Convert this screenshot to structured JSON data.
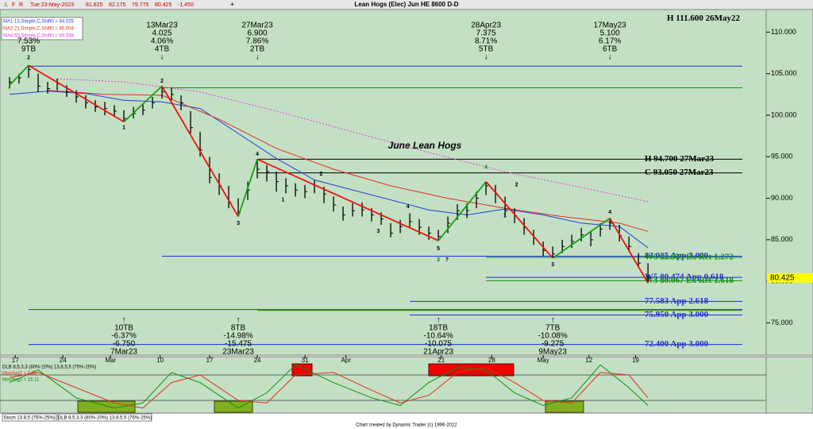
{
  "chart_data": {
    "type": "ohlc",
    "title": "Lean Hogs (Elec) Jun HE 8600 D-D",
    "header": {
      "tools": [
        "L",
        "F",
        "R"
      ],
      "date": "Tue 23-May-2023",
      "quote": [
        81.825,
        82.175,
        79.775,
        80.425,
        {
          "value": -1.45,
          "label": "-1.450"
        }
      ],
      "cursor_symbol": "+"
    },
    "annotation": "June Lean Hogs",
    "annotation_at": {
      "x": 43.5,
      "y": 96.4
    },
    "xlim": [
      -1,
      79.4
    ],
    "xticks": [
      {
        "value": 0.6,
        "label": "17"
      },
      {
        "value": 5.6,
        "label": "24"
      },
      {
        "value": 10.6,
        "label": "Mar"
      },
      {
        "value": 15.8,
        "label": "10"
      },
      {
        "value": 21,
        "label": "17"
      },
      {
        "value": 26,
        "label": "24"
      },
      {
        "value": 31,
        "label": "31"
      },
      {
        "value": 35.3,
        "label": "Apr"
      },
      {
        "value": 45.3,
        "label": "21"
      },
      {
        "value": 50.6,
        "label": "28"
      },
      {
        "value": 56,
        "label": "May"
      },
      {
        "value": 60.8,
        "label": "12"
      },
      {
        "value": 65.7,
        "label": "19"
      }
    ],
    "ylim": [
      71.5,
      113.1
    ],
    "yticks": [
      {
        "value": 75,
        "label": "75.000"
      },
      {
        "value": 80,
        "label": "80.000"
      },
      {
        "value": 85,
        "label": "85.000"
      },
      {
        "value": 90,
        "label": "90.000"
      },
      {
        "value": 95,
        "label": "95.000"
      },
      {
        "value": 100,
        "label": "100.000"
      },
      {
        "value": 105,
        "label": "105.000"
      },
      {
        "value": 110,
        "label": "110.000"
      }
    ],
    "bars": {
      "color": "#000000",
      "high": [
        104.6,
        105.0,
        106.0,
        105.0,
        104.0,
        104.4,
        103.6,
        103.0,
        102.4,
        101.8,
        101.6,
        101.2,
        100.6,
        101.0,
        101.4,
        102.2,
        103.5,
        103.3,
        102.4,
        100.5,
        98.0,
        95.0,
        93.0,
        91.5,
        90.0,
        92.0,
        94.7,
        94.0,
        93.2,
        92.4,
        91.8,
        91.6,
        92.2,
        91.4,
        90.2,
        89.0,
        89.4,
        89.5,
        88.8,
        88.3,
        87.0,
        87.4,
        88.2,
        87.5,
        86.6,
        86.2,
        87.8,
        89.3,
        89.4,
        90.8,
        92.0,
        91.6,
        90.2,
        88.8,
        87.6,
        86.2,
        84.8,
        84.2,
        85.0,
        85.6,
        86.4,
        86.0,
        87.0,
        87.6,
        86.8,
        85.4,
        83.4,
        82.175
      ],
      "low": [
        103.2,
        103.8,
        104.5,
        102.8,
        102.6,
        103.0,
        102.2,
        101.5,
        100.8,
        100.4,
        100.0,
        99.8,
        99.2,
        99.6,
        100.0,
        100.8,
        102.0,
        101.8,
        100.6,
        97.8,
        95.0,
        91.8,
        90.4,
        88.8,
        87.8,
        89.8,
        92.4,
        92.0,
        90.8,
        90.6,
        90.2,
        90.0,
        90.6,
        89.4,
        88.4,
        87.3,
        87.8,
        87.8,
        87.2,
        86.8,
        85.3,
        85.8,
        86.4,
        85.6,
        85.0,
        84.9,
        85.8,
        87.4,
        87.6,
        88.8,
        90.4,
        89.4,
        87.8,
        87.0,
        85.6,
        84.4,
        83.0,
        82.8,
        83.4,
        84.0,
        84.8,
        84.2,
        85.4,
        86.2,
        84.8,
        83.6,
        81.6,
        79.775
      ],
      "close": [
        104.0,
        104.5,
        105.5,
        103.5,
        103.2,
        103.8,
        102.8,
        102.2,
        101.5,
        101.0,
        100.8,
        100.5,
        99.6,
        100.2,
        100.6,
        101.5,
        102.8,
        102.5,
        101.5,
        98.5,
        95.8,
        92.5,
        91.5,
        89.5,
        88.3,
        91.0,
        93.5,
        93.2,
        92.0,
        91.5,
        91.0,
        90.8,
        91.5,
        90.5,
        89.2,
        88.0,
        88.5,
        88.6,
        88.0,
        87.5,
        85.8,
        86.6,
        87.2,
        86.5,
        85.8,
        85.4,
        87.0,
        88.5,
        88.5,
        90.0,
        91.5,
        90.5,
        88.5,
        87.9,
        86.5,
        85.2,
        83.7,
        83.3,
        84.2,
        84.8,
        85.6,
        85.0,
        86.3,
        87.0,
        85.5,
        84.2,
        82.2,
        80.425
      ]
    },
    "last_price": 80.425,
    "moving_averages": [
      {
        "label": "MA1:13,Simple,C,Shift0 = 84.025",
        "color": "#2040e0",
        "dash": "",
        "x": [
          0,
          4,
          8,
          12,
          16,
          20,
          24,
          28,
          32,
          36,
          40,
          44,
          48,
          52,
          56,
          60,
          64,
          67
        ],
        "values": [
          102.5,
          102.9,
          102.6,
          101.8,
          101.6,
          100.8,
          97.8,
          94.8,
          92.2,
          91.0,
          89.8,
          88.6,
          88.0,
          88.7,
          88.0,
          87.0,
          86.6,
          84.025
        ]
      },
      {
        "label": "MA2:21,Simple,C,Shift0 = 86.004",
        "color": "#e03020",
        "dash": "",
        "x": [
          4,
          10,
          16,
          22,
          28,
          34,
          40,
          46,
          52,
          58,
          64,
          67
        ],
        "values": [
          103.0,
          102.5,
          102.4,
          99.5,
          96.0,
          93.5,
          91.5,
          90.0,
          88.8,
          87.8,
          87.0,
          86.004
        ]
      },
      {
        "label": "MA4:55,Simple,C,Shift0 = 89.598",
        "color": "#e040e0",
        "dash": "2 2",
        "x": [
          5,
          12,
          20,
          28,
          36,
          44,
          52,
          60,
          67
        ],
        "values": [
          104.4,
          104.0,
          102.8,
          100.5,
          98.0,
          95.5,
          93.2,
          91.3,
          89.598
        ]
      }
    ],
    "zigzag": {
      "up_color": "#18a018",
      "down_color": "#f01010",
      "x": [
        0,
        2,
        12,
        16,
        24,
        26,
        45,
        50,
        57,
        63,
        67
      ],
      "values": [
        103.6,
        106.0,
        99.2,
        103.5,
        87.8,
        94.7,
        84.9,
        92.0,
        82.8,
        87.6,
        79.8
      ]
    },
    "levels": [
      {
        "value": 111.6,
        "label": "H 111.600 26May22",
        "color": "#000000"
      },
      {
        "value": 105.9,
        "color": "#2030d0",
        "x0": 2
      },
      {
        "value": 103.3,
        "color": "#109010",
        "x0": 16
      },
      {
        "value": 94.7,
        "label": "H 94.700 27Mar23",
        "color": "#000000",
        "x0": 26
      },
      {
        "value": 93.05,
        "label": "C 93.050 27Mar23",
        "color": "#000000",
        "x0": 26
      },
      {
        "value": 83.025,
        "label": "83.025 App 3.000",
        "color": "#2030d0",
        "x0": 16
      },
      {
        "value": 82.875,
        "label": "W5 82.875 Ex Ret 1.272",
        "color": "#109010",
        "x0": 50
      },
      {
        "value": 80.474,
        "label": "W5 80.474 App 0.618",
        "color": "#2030d0",
        "x0": 50
      },
      {
        "value": 80.067,
        "label": "W3 80.067 Ex Ret 1.618",
        "color": "#109010",
        "x0": 50
      },
      {
        "value": 77.583,
        "label": "77.583 App 2.618",
        "color": "#2030d0",
        "x0": 42
      },
      {
        "value": 76.6,
        "color": "#2030d0",
        "x0": 2
      },
      {
        "value": 76.5,
        "color": "#109010",
        "x0": 26
      },
      {
        "value": 75.95,
        "label": "75.950 App 3.000",
        "color": "#2030d0",
        "x0": 42
      },
      {
        "value": 72.4,
        "label": "72.400 App 3.000",
        "color": "#2030d0",
        "x0": 2
      }
    ],
    "annotations_top": [
      {
        "x": 2,
        "lines": [
          "7.53%",
          "9TB",
          "↓"
        ]
      },
      {
        "x": 16,
        "lines": [
          "13Mar23",
          "4.025",
          "4.06%",
          "4TB",
          "↓"
        ]
      },
      {
        "x": 26,
        "lines": [
          "27Mar23",
          "6.900",
          "7.86%",
          "2TB",
          "↓"
        ]
      },
      {
        "x": 50,
        "lines": [
          "28Apr23",
          "7.375",
          "8.71%",
          "5TB",
          "↓"
        ]
      },
      {
        "x": 63,
        "lines": [
          "17May23",
          "5.100",
          "6.17%",
          "6TB",
          "↓"
        ]
      }
    ],
    "annotations_bottom": [
      {
        "x": 12,
        "lines": [
          "↑",
          "10TB",
          "-6.37%",
          "-6.750",
          "7Mar23"
        ]
      },
      {
        "x": 24,
        "lines": [
          "↑",
          "8TB",
          "-14.98%",
          "-15.475",
          "23Mar23"
        ]
      },
      {
        "x": 45,
        "lines": [
          "↑",
          "18TB",
          "-10.64%",
          "-10.075",
          "21Apr23"
        ]
      },
      {
        "x": 57,
        "lines": [
          "↑",
          "7TB",
          "-10.08%",
          "-9.275",
          "9May23"
        ]
      }
    ],
    "wave_labels": [
      {
        "label": "2",
        "x": 2,
        "y": 106.9,
        "color": "#108010"
      },
      {
        "label": "1",
        "x": 12,
        "y": 98.5,
        "color": "#000000"
      },
      {
        "label": "2",
        "x": 16,
        "y": 104.1,
        "color": "#000000"
      },
      {
        "label": "3",
        "x": 24,
        "y": 87.0,
        "color": "#000000"
      },
      {
        "label": "4",
        "x": 26,
        "y": 95.3,
        "color": "#000000"
      },
      {
        "label": "1",
        "x": 28.7,
        "y": 89.8,
        "color": "#000000"
      },
      {
        "label": "2",
        "x": 32.7,
        "y": 92.9,
        "color": "#000000"
      },
      {
        "label": "3",
        "x": 38.7,
        "y": 86.0,
        "color": "#000000"
      },
      {
        "label": "4",
        "x": 41.8,
        "y": 89.0,
        "color": "#000000"
      },
      {
        "label": "5",
        "x": 45,
        "y": 83.9,
        "color": "#000000"
      },
      {
        "label": "3",
        "x": 45,
        "y": 82.6,
        "color": "#108010"
      },
      {
        "label": "?",
        "x": 45.9,
        "y": 82.6,
        "color": "#000000"
      },
      {
        "label": "4",
        "x": 50,
        "y": 93.7,
        "color": "#108010"
      },
      {
        "label": "2",
        "x": 53.2,
        "y": 91.6,
        "color": "#000000"
      },
      {
        "label": "1",
        "x": 52,
        "y": 87.9,
        "color": "#000000"
      },
      {
        "label": "3",
        "x": 57,
        "y": 82.0,
        "color": "#000000"
      },
      {
        "label": "4",
        "x": 63,
        "y": 88.3,
        "color": "#000000"
      }
    ],
    "indicator": {
      "labels": [
        "DLB 8,5,3,3 (80%-20%) 13,8,5,5 (75%-25%)",
        "MovAvg1 = 0.00",
        "MovAvg2 = 15.11"
      ],
      "label_colors": [
        "#000000",
        "#e03020",
        "#108010"
      ],
      "ylim": [
        0,
        100
      ],
      "levels": [
        75,
        25
      ],
      "series": [
        {
          "color": "#109010",
          "x": [
            0,
            3,
            7,
            11,
            14,
            17,
            20,
            24,
            27,
            30,
            34,
            38,
            41,
            44,
            47,
            50,
            53,
            56,
            59,
            62,
            65,
            67
          ],
          "values": [
            60,
            85,
            30,
            10,
            20,
            80,
            60,
            10,
            40,
            95,
            60,
            30,
            15,
            60,
            90,
            85,
            40,
            15,
            30,
            95,
            50,
            15
          ]
        },
        {
          "color": "#e03020",
          "x": [
            0,
            3,
            7,
            11,
            14,
            17,
            20,
            24,
            27,
            30,
            34,
            38,
            41,
            44,
            47,
            50,
            53,
            56,
            59,
            62,
            65,
            67
          ],
          "values": [
            70,
            80,
            50,
            20,
            10,
            60,
            75,
            25,
            20,
            75,
            80,
            45,
            20,
            35,
            80,
            90,
            60,
            25,
            20,
            80,
            75,
            30
          ]
        }
      ]
    },
    "tabs": [
      "Stoch 13.8.5 (75%-25%)",
      "DLB 8.5.3.3 (80%-20%) 13.8.5.5 (75%-25%)"
    ],
    "footer": "Chart created by Dynamic Trader  (c)  1996-2022"
  }
}
